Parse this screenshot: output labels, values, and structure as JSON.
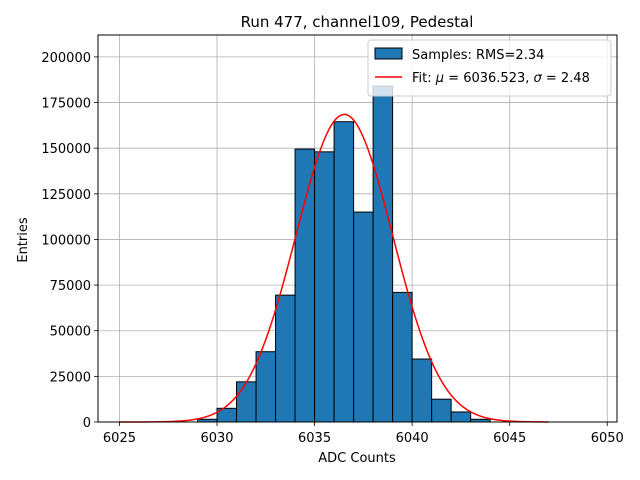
{
  "chart_data": {
    "type": "bar",
    "title": "Run 477, channel109, Pedestal",
    "xlabel": "ADC Counts",
    "ylabel": "Entries",
    "xlim": [
      6023.9,
      6050.5
    ],
    "ylim": [
      0,
      212000
    ],
    "grid": true,
    "legend_position": "top-right",
    "xticks": [
      6025,
      6030,
      6035,
      6040,
      6045,
      6050
    ],
    "yticks": [
      0,
      25000,
      50000,
      75000,
      100000,
      125000,
      150000,
      175000,
      200000
    ],
    "ytick_labels": [
      "0",
      "25000",
      "50000",
      "75000",
      "100000",
      "125000",
      "150000",
      "175000",
      "200000"
    ],
    "histogram": {
      "name": "Samples: RMS=2.34",
      "bin_width": 1,
      "bin_left_edges": [
        6029,
        6030,
        6031,
        6032,
        6033,
        6034,
        6035,
        6036,
        6037,
        6038,
        6039,
        6040,
        6041,
        6042,
        6043
      ],
      "counts": [
        1500,
        7500,
        22000,
        38500,
        69500,
        149500,
        148000,
        164500,
        115000,
        184000,
        71000,
        34500,
        12500,
        5500,
        1500
      ],
      "color": "#1f77b4",
      "edge_color": "#000000"
    },
    "fit": {
      "name": "Fit: μ = 6036.523, σ = 2.48",
      "type": "gaussian",
      "mu": 6036.523,
      "sigma": 2.48,
      "amplitude": 168500,
      "x_range": [
        6025,
        6047
      ],
      "color": "#ff0000"
    },
    "legend": [
      {
        "label": "Samples: RMS=2.34",
        "kind": "patch"
      },
      {
        "label": "Fit: ",
        "italic_parts": true,
        "kind": "line"
      }
    ]
  }
}
